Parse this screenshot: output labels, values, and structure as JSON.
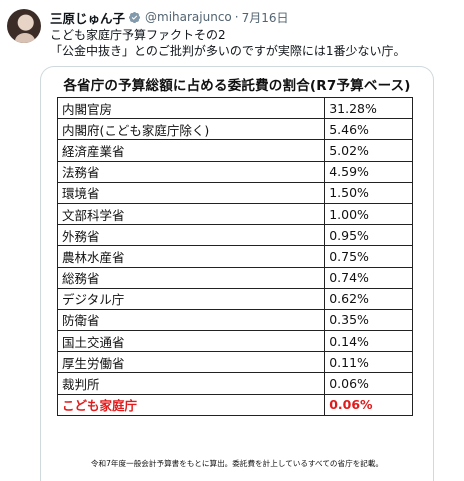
{
  "tweet": {
    "author_name": "三原じゅん子",
    "handle": "@miharajunco",
    "separator": "·",
    "date": "7月16日",
    "text_lines": [
      "こども家庭庁予算ファクトその2",
      "「公金中抜き」とのご批判が多いのですが実際には1番少ない庁。"
    ]
  },
  "figure": {
    "title": "各省庁の予算総額に占める委託費の割合(R7予算ベース)",
    "rows": [
      {
        "name": "内閣官房",
        "value": "31.28%"
      },
      {
        "name": "内閣府(こども家庭庁除く)",
        "value": "5.46%"
      },
      {
        "name": "経済産業省",
        "value": "5.02%"
      },
      {
        "name": "法務省",
        "value": "4.59%"
      },
      {
        "name": "環境省",
        "value": "1.50%"
      },
      {
        "name": "文部科学省",
        "value": "1.00%"
      },
      {
        "name": "外務省",
        "value": "0.95%"
      },
      {
        "name": "農林水産省",
        "value": "0.75%"
      },
      {
        "name": "総務省",
        "value": "0.74%"
      },
      {
        "name": "デジタル庁",
        "value": "0.62%"
      },
      {
        "name": "防衛省",
        "value": "0.35%"
      },
      {
        "name": "国土交通省",
        "value": "0.14%"
      },
      {
        "name": "厚生労働省",
        "value": "0.11%"
      },
      {
        "name": "裁判所",
        "value": "0.06%"
      },
      {
        "name": "こども家庭庁",
        "value": "0.06%"
      }
    ],
    "highlight_row": "こども家庭庁",
    "highlight_color": "#e11b1b",
    "note": "令和7年度一般会計予算書をもとに算出。委託費を計上しているすべての省庁を記載。"
  },
  "colors": {
    "verified_badge": "#829aab",
    "secondary_text": "#536471"
  },
  "icons": {
    "verified": "verified-badge-icon"
  }
}
